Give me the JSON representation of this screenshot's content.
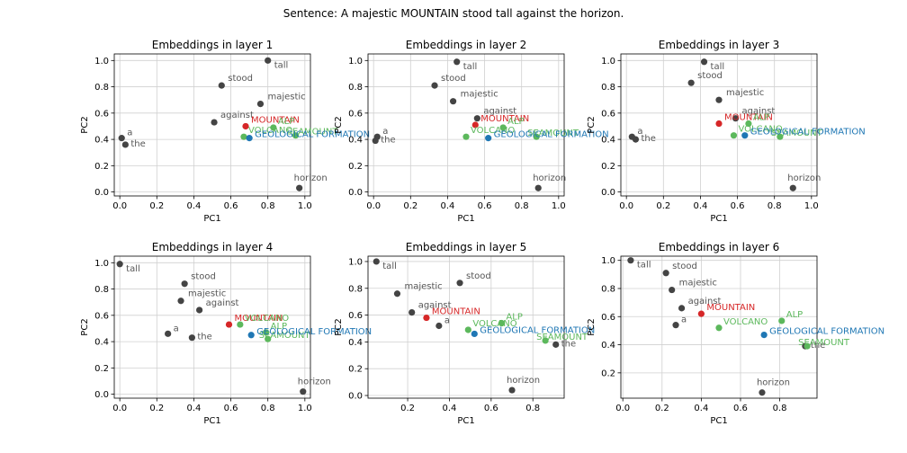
{
  "suptitle": "Sentence: A majestic MOUNTAIN stood tall against the horizon.",
  "colors": {
    "word": "#444444",
    "target": "#d62728",
    "related": "#5cb85c",
    "concept": "#1f77b4"
  },
  "chart_data": [
    {
      "type": "scatter",
      "title": "Embeddings in layer 1",
      "xlabel": "PC1",
      "ylabel": "PC2",
      "xlim": [
        -0.03,
        1.03
      ],
      "ylim": [
        -0.03,
        1.05
      ],
      "xticks": [
        "0.0",
        "0.2",
        "0.4",
        "0.6",
        "0.8",
        "1.0"
      ],
      "yticks": [
        "0.0",
        "0.2",
        "0.4",
        "0.6",
        "0.8",
        "1.0"
      ],
      "grid": true,
      "points": [
        {
          "label": "tall",
          "x": 0.8,
          "y": 1.0,
          "group": "word"
        },
        {
          "label": "stood",
          "x": 0.55,
          "y": 0.81,
          "group": "word"
        },
        {
          "label": "majestic",
          "x": 0.76,
          "y": 0.67,
          "group": "word"
        },
        {
          "label": "against",
          "x": 0.51,
          "y": 0.53,
          "group": "word"
        },
        {
          "label": "a",
          "x": 0.01,
          "y": 0.41,
          "group": "word"
        },
        {
          "label": "the",
          "x": 0.03,
          "y": 0.36,
          "group": "word"
        },
        {
          "label": "horizon",
          "x": 0.97,
          "y": 0.03,
          "group": "word"
        },
        {
          "label": "MOUNTAIN",
          "x": 0.68,
          "y": 0.5,
          "group": "target"
        },
        {
          "label": "VOLCANO",
          "x": 0.67,
          "y": 0.42,
          "group": "related"
        },
        {
          "label": "ALP",
          "x": 0.83,
          "y": 0.49,
          "group": "related"
        },
        {
          "label": "SEAMOUNT",
          "x": 0.95,
          "y": 0.43,
          "group": "related"
        },
        {
          "label": "GEOLOGICAL FORMATION",
          "x": 0.7,
          "y": 0.41,
          "group": "concept"
        }
      ]
    },
    {
      "type": "scatter",
      "title": "Embeddings in layer 2",
      "xlabel": "PC1",
      "ylabel": "PC2",
      "xlim": [
        -0.03,
        1.03
      ],
      "ylim": [
        -0.03,
        1.05
      ],
      "xticks": [
        "0.0",
        "0.2",
        "0.4",
        "0.6",
        "0.8",
        "1.0"
      ],
      "yticks": [
        "0.0",
        "0.2",
        "0.4",
        "0.6",
        "0.8",
        "1.0"
      ],
      "grid": true,
      "points": [
        {
          "label": "tall",
          "x": 0.45,
          "y": 0.99,
          "group": "word"
        },
        {
          "label": "stood",
          "x": 0.33,
          "y": 0.81,
          "group": "word"
        },
        {
          "label": "majestic",
          "x": 0.43,
          "y": 0.69,
          "group": "word"
        },
        {
          "label": "against",
          "x": 0.56,
          "y": 0.56,
          "group": "word"
        },
        {
          "label": "a",
          "x": 0.02,
          "y": 0.42,
          "group": "word"
        },
        {
          "label": "the",
          "x": 0.01,
          "y": 0.39,
          "group": "word"
        },
        {
          "label": "horizon",
          "x": 0.89,
          "y": 0.03,
          "group": "word"
        },
        {
          "label": "MOUNTAIN",
          "x": 0.55,
          "y": 0.51,
          "group": "target"
        },
        {
          "label": "VOLCANO",
          "x": 0.5,
          "y": 0.42,
          "group": "related"
        },
        {
          "label": "ALP",
          "x": 0.7,
          "y": 0.49,
          "group": "related"
        },
        {
          "label": "SEAMOUNT",
          "x": 0.88,
          "y": 0.42,
          "group": "related"
        },
        {
          "label": "GEOLOGICAL FORMATION",
          "x": 0.62,
          "y": 0.41,
          "group": "concept"
        }
      ]
    },
    {
      "type": "scatter",
      "title": "Embeddings in layer 3",
      "xlabel": "PC1",
      "ylabel": "PC2",
      "xlim": [
        -0.03,
        1.03
      ],
      "ylim": [
        -0.03,
        1.05
      ],
      "xticks": [
        "0.0",
        "0.2",
        "0.4",
        "0.6",
        "0.8",
        "1.0"
      ],
      "yticks": [
        "0.0",
        "0.2",
        "0.4",
        "0.6",
        "0.8",
        "1.0"
      ],
      "grid": true,
      "points": [
        {
          "label": "tall",
          "x": 0.42,
          "y": 0.99,
          "group": "word"
        },
        {
          "label": "stood",
          "x": 0.35,
          "y": 0.83,
          "group": "word"
        },
        {
          "label": "majestic",
          "x": 0.5,
          "y": 0.7,
          "group": "word"
        },
        {
          "label": "against",
          "x": 0.59,
          "y": 0.56,
          "group": "word"
        },
        {
          "label": "a",
          "x": 0.03,
          "y": 0.42,
          "group": "word"
        },
        {
          "label": "the",
          "x": 0.05,
          "y": 0.4,
          "group": "word"
        },
        {
          "label": "horizon",
          "x": 0.9,
          "y": 0.03,
          "group": "word"
        },
        {
          "label": "MOUNTAIN",
          "x": 0.5,
          "y": 0.52,
          "group": "target"
        },
        {
          "label": "VOLCANO",
          "x": 0.58,
          "y": 0.43,
          "group": "related"
        },
        {
          "label": "ALP",
          "x": 0.66,
          "y": 0.52,
          "group": "related"
        },
        {
          "label": "SEAMOUNT",
          "x": 0.83,
          "y": 0.42,
          "group": "related"
        },
        {
          "label": "GEOLOGICAL FORMATION",
          "x": 0.64,
          "y": 0.43,
          "group": "concept"
        }
      ]
    },
    {
      "type": "scatter",
      "title": "Embeddings in layer 4",
      "xlabel": "PC1",
      "ylabel": "PC2",
      "xlim": [
        -0.03,
        1.03
      ],
      "ylim": [
        -0.03,
        1.05
      ],
      "xticks": [
        "0.0",
        "0.2",
        "0.4",
        "0.6",
        "0.8",
        "1.0"
      ],
      "yticks": [
        "0.0",
        "0.2",
        "0.4",
        "0.6",
        "0.8",
        "1.0"
      ],
      "grid": true,
      "points": [
        {
          "label": "tall",
          "x": 0.0,
          "y": 0.99,
          "group": "word"
        },
        {
          "label": "stood",
          "x": 0.35,
          "y": 0.84,
          "group": "word"
        },
        {
          "label": "majestic",
          "x": 0.33,
          "y": 0.71,
          "group": "word"
        },
        {
          "label": "against",
          "x": 0.43,
          "y": 0.64,
          "group": "word"
        },
        {
          "label": "a",
          "x": 0.26,
          "y": 0.46,
          "group": "word"
        },
        {
          "label": "the",
          "x": 0.39,
          "y": 0.43,
          "group": "word"
        },
        {
          "label": "horizon",
          "x": 0.99,
          "y": 0.02,
          "group": "word"
        },
        {
          "label": "MOUNTAIN",
          "x": 0.59,
          "y": 0.53,
          "group": "target"
        },
        {
          "label": "VOLCANO",
          "x": 0.65,
          "y": 0.53,
          "group": "related"
        },
        {
          "label": "ALP",
          "x": 0.79,
          "y": 0.47,
          "group": "related"
        },
        {
          "label": "SEAMOUNT",
          "x": 0.8,
          "y": 0.42,
          "group": "related"
        },
        {
          "label": "GEOLOGICAL FORMATION",
          "x": 0.71,
          "y": 0.45,
          "group": "concept"
        }
      ]
    },
    {
      "type": "scatter",
      "title": "Embeddings in layer 5",
      "xlabel": "PC1",
      "ylabel": "PC2",
      "xlim": [
        0.01,
        0.95
      ],
      "ylim": [
        -0.02,
        1.04
      ],
      "xticks": [
        "0.2",
        "0.4",
        "0.6",
        "0.8"
      ],
      "yticks": [
        "0.0",
        "0.2",
        "0.4",
        "0.6",
        "0.8",
        "1.0"
      ],
      "grid": true,
      "points": [
        {
          "label": "tall",
          "x": 0.05,
          "y": 1.0,
          "group": "word"
        },
        {
          "label": "stood",
          "x": 0.45,
          "y": 0.84,
          "group": "word"
        },
        {
          "label": "majestic",
          "x": 0.15,
          "y": 0.76,
          "group": "word"
        },
        {
          "label": "against",
          "x": 0.22,
          "y": 0.62,
          "group": "word"
        },
        {
          "label": "a",
          "x": 0.35,
          "y": 0.52,
          "group": "word"
        },
        {
          "label": "the",
          "x": 0.91,
          "y": 0.38,
          "group": "word"
        },
        {
          "label": "horizon",
          "x": 0.7,
          "y": 0.04,
          "group": "word"
        },
        {
          "label": "MOUNTAIN",
          "x": 0.29,
          "y": 0.58,
          "group": "target"
        },
        {
          "label": "VOLCANO",
          "x": 0.49,
          "y": 0.49,
          "group": "related"
        },
        {
          "label": "ALP",
          "x": 0.65,
          "y": 0.54,
          "group": "related"
        },
        {
          "label": "SEAMOUNT",
          "x": 0.86,
          "y": 0.41,
          "group": "related"
        },
        {
          "label": "GEOLOGICAL FORMATION",
          "x": 0.52,
          "y": 0.46,
          "group": "concept"
        }
      ]
    },
    {
      "type": "scatter",
      "title": "Embeddings in layer 6",
      "xlabel": "PC1",
      "ylabel": "PC2",
      "xlim": [
        -0.01,
        0.99
      ],
      "ylim": [
        0.02,
        1.03
      ],
      "xticks": [
        "0.0",
        "0.2",
        "0.4",
        "0.6",
        "0.8"
      ],
      "yticks": [
        "0.2",
        "0.4",
        "0.6",
        "0.8",
        "1.0"
      ],
      "grid": true,
      "points": [
        {
          "label": "tall",
          "x": 0.04,
          "y": 1.0,
          "group": "word"
        },
        {
          "label": "stood",
          "x": 0.22,
          "y": 0.91,
          "group": "word"
        },
        {
          "label": "majestic",
          "x": 0.25,
          "y": 0.79,
          "group": "word"
        },
        {
          "label": "against",
          "x": 0.3,
          "y": 0.66,
          "group": "word"
        },
        {
          "label": "a",
          "x": 0.27,
          "y": 0.54,
          "group": "word"
        },
        {
          "label": "the",
          "x": 0.93,
          "y": 0.39,
          "group": "word"
        },
        {
          "label": "horizon",
          "x": 0.71,
          "y": 0.06,
          "group": "word"
        },
        {
          "label": "MOUNTAIN",
          "x": 0.4,
          "y": 0.62,
          "group": "target"
        },
        {
          "label": "VOLCANO",
          "x": 0.49,
          "y": 0.52,
          "group": "related"
        },
        {
          "label": "ALP",
          "x": 0.81,
          "y": 0.57,
          "group": "related"
        },
        {
          "label": "SEAMOUNT",
          "x": 0.94,
          "y": 0.39,
          "group": "related"
        },
        {
          "label": "GEOLOGICAL FORMATION",
          "x": 0.72,
          "y": 0.47,
          "group": "concept"
        }
      ]
    }
  ]
}
